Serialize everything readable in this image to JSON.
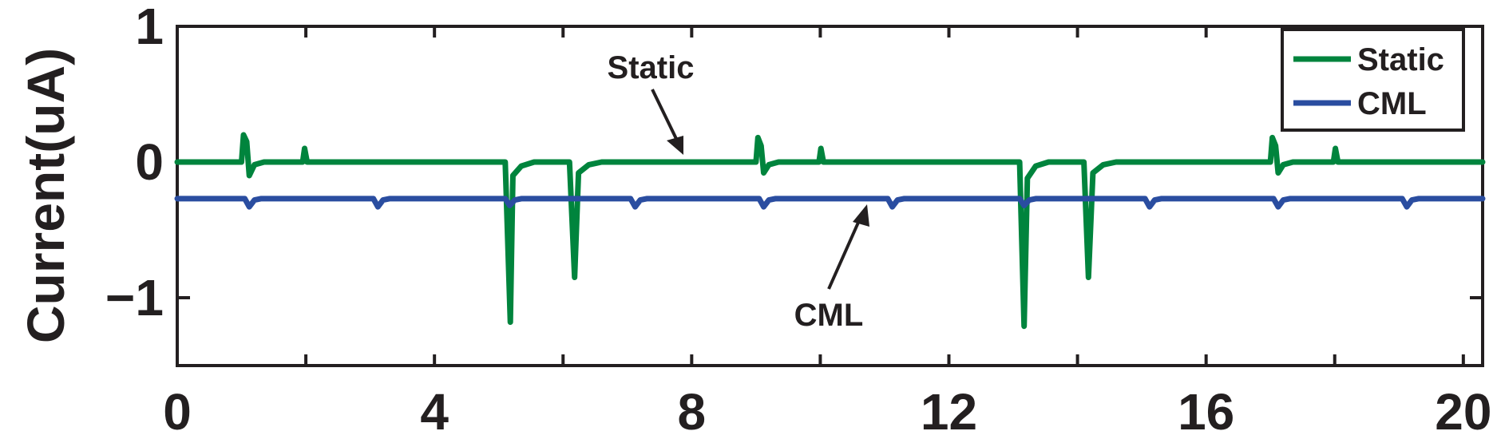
{
  "chart_data": {
    "type": "line",
    "title": "",
    "xlabel": "",
    "ylabel": "Current(uA)",
    "xlim": [
      0,
      20.3
    ],
    "ylim": [
      -1.5,
      1
    ],
    "xticks": [
      0,
      4,
      8,
      12,
      16,
      20
    ],
    "xtick_labels": [
      "0",
      "4",
      "8",
      "12",
      "16",
      "20"
    ],
    "yticks": [
      1,
      0,
      -1
    ],
    "ytick_labels": [
      "1",
      "0",
      "−1"
    ],
    "grid": false,
    "legend": {
      "placement": "top-right",
      "entries": [
        "Static",
        "CML"
      ]
    },
    "colors": {
      "Static": "#00843d",
      "CML": "#2a4da0",
      "axis": "#231f20"
    },
    "annotations": [
      {
        "text": "Static",
        "arrow_to": [
          7.7,
          0.03
        ]
      },
      {
        "text": "CML",
        "arrow_to": [
          10.5,
          -0.3
        ]
      }
    ],
    "series": [
      {
        "name": "Static",
        "baseline": 0.0,
        "points": [
          [
            0,
            0
          ],
          [
            1.0,
            0
          ],
          [
            1.03,
            0.2
          ],
          [
            1.08,
            0.15
          ],
          [
            1.12,
            -0.1
          ],
          [
            1.2,
            -0.02
          ],
          [
            1.35,
            0
          ],
          [
            1.95,
            0
          ],
          [
            1.98,
            0.1
          ],
          [
            2.02,
            0
          ],
          [
            5.1,
            0
          ],
          [
            5.18,
            -1.18
          ],
          [
            5.22,
            -0.1
          ],
          [
            5.35,
            -0.03
          ],
          [
            5.55,
            0
          ],
          [
            6.1,
            0
          ],
          [
            6.18,
            -0.85
          ],
          [
            6.24,
            -0.08
          ],
          [
            6.4,
            -0.02
          ],
          [
            6.6,
            0
          ],
          [
            9.0,
            0
          ],
          [
            9.03,
            0.18
          ],
          [
            9.08,
            0.12
          ],
          [
            9.12,
            -0.08
          ],
          [
            9.2,
            -0.02
          ],
          [
            9.35,
            0
          ],
          [
            9.98,
            0
          ],
          [
            10.01,
            0.1
          ],
          [
            10.05,
            0
          ],
          [
            13.1,
            0
          ],
          [
            13.17,
            -1.21
          ],
          [
            13.22,
            -0.12
          ],
          [
            13.35,
            -0.03
          ],
          [
            13.55,
            0
          ],
          [
            14.1,
            0
          ],
          [
            14.17,
            -0.85
          ],
          [
            14.24,
            -0.08
          ],
          [
            14.4,
            -0.02
          ],
          [
            14.6,
            0
          ],
          [
            17.0,
            0
          ],
          [
            17.03,
            0.18
          ],
          [
            17.08,
            0.12
          ],
          [
            17.12,
            -0.08
          ],
          [
            17.2,
            -0.02
          ],
          [
            17.35,
            0
          ],
          [
            17.98,
            0
          ],
          [
            18.01,
            0.1
          ],
          [
            18.05,
            0
          ],
          [
            20.3,
            0
          ]
        ]
      },
      {
        "name": "CML",
        "baseline": -0.27,
        "points": [
          [
            0,
            -0.27
          ],
          [
            1.05,
            -0.27
          ],
          [
            1.12,
            -0.33
          ],
          [
            1.2,
            -0.28
          ],
          [
            1.3,
            -0.27
          ],
          [
            3.05,
            -0.27
          ],
          [
            3.12,
            -0.33
          ],
          [
            3.2,
            -0.28
          ],
          [
            3.3,
            -0.27
          ],
          [
            5.1,
            -0.27
          ],
          [
            5.17,
            -0.32
          ],
          [
            5.25,
            -0.28
          ],
          [
            5.35,
            -0.27
          ],
          [
            7.05,
            -0.27
          ],
          [
            7.12,
            -0.33
          ],
          [
            7.2,
            -0.28
          ],
          [
            7.3,
            -0.27
          ],
          [
            9.05,
            -0.27
          ],
          [
            9.12,
            -0.33
          ],
          [
            9.2,
            -0.28
          ],
          [
            9.3,
            -0.27
          ],
          [
            11.05,
            -0.27
          ],
          [
            11.12,
            -0.33
          ],
          [
            11.2,
            -0.28
          ],
          [
            11.3,
            -0.27
          ],
          [
            13.1,
            -0.27
          ],
          [
            13.17,
            -0.32
          ],
          [
            13.25,
            -0.28
          ],
          [
            13.35,
            -0.27
          ],
          [
            15.05,
            -0.27
          ],
          [
            15.12,
            -0.33
          ],
          [
            15.2,
            -0.28
          ],
          [
            15.3,
            -0.27
          ],
          [
            17.05,
            -0.27
          ],
          [
            17.12,
            -0.33
          ],
          [
            17.2,
            -0.28
          ],
          [
            17.3,
            -0.27
          ],
          [
            19.05,
            -0.27
          ],
          [
            19.12,
            -0.33
          ],
          [
            19.2,
            -0.28
          ],
          [
            19.3,
            -0.27
          ],
          [
            20.3,
            -0.27
          ]
        ]
      }
    ]
  }
}
